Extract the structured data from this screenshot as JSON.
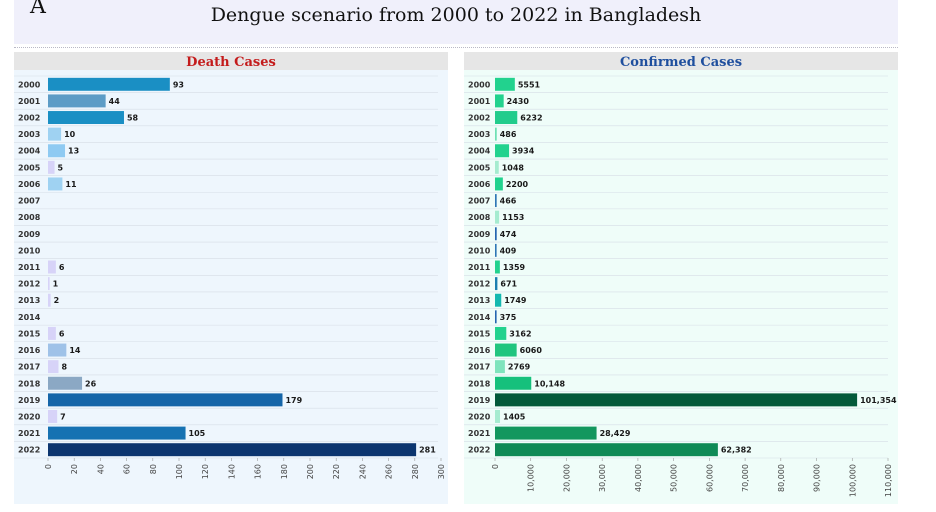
{
  "figure": {
    "panel_letter": "A",
    "title": "Dengue scenario  from 2000 to 2022 in Bangladesh"
  },
  "chart_data": [
    {
      "type": "bar",
      "orientation": "horizontal",
      "title": "Death Cases",
      "title_color": "#c41b1b",
      "categories": [
        "2000",
        "2001",
        "2002",
        "2003",
        "2004",
        "2005",
        "2006",
        "2007",
        "2008",
        "2009",
        "2010",
        "2011",
        "2012",
        "2013",
        "2014",
        "2015",
        "2016",
        "2017",
        "2018",
        "2019",
        "2020",
        "2021",
        "2022"
      ],
      "values": [
        93,
        44,
        58,
        10,
        13,
        5,
        11,
        0,
        0,
        0,
        0,
        6,
        1,
        2,
        0,
        6,
        14,
        8,
        26,
        179,
        7,
        105,
        281
      ],
      "value_labels": [
        "93",
        "44",
        "58",
        "10",
        "13",
        "5",
        "11",
        "",
        "",
        "",
        "",
        "6",
        "1",
        "2",
        "",
        "6",
        "14",
        "8",
        "26",
        "179",
        "7",
        "105",
        "281"
      ],
      "bar_colors": [
        "#1a8fc4",
        "#5d9cc6",
        "#1a8fc4",
        "#9fd2f2",
        "#8fcaf2",
        "#d7d3f8",
        "#9fd2f2",
        "#ffffff",
        "#ffffff",
        "#ffffff",
        "#ffffff",
        "#d7d3f8",
        "#d7d3f8",
        "#d7d3f8",
        "#ffffff",
        "#d7d3f8",
        "#9fc2e8",
        "#d7d3f8",
        "#8ba8c4",
        "#1565a8",
        "#d7d3f8",
        "#1672b2",
        "#0c356f"
      ],
      "xlim": [
        0,
        300
      ],
      "ticks": [
        0,
        20,
        40,
        60,
        80,
        100,
        120,
        140,
        160,
        180,
        200,
        220,
        240,
        260,
        280,
        300
      ],
      "tick_labels": [
        "0",
        "20",
        "40",
        "60",
        "80",
        "100",
        "120",
        "140",
        "160",
        "180",
        "200",
        "220",
        "240",
        "260",
        "280",
        "300"
      ],
      "background": "#eef6fd"
    },
    {
      "type": "bar",
      "orientation": "horizontal",
      "title": "Confirmed Cases",
      "title_color": "#1f4f9e",
      "categories": [
        "2000",
        "2001",
        "2002",
        "2003",
        "2004",
        "2005",
        "2006",
        "2007",
        "2008",
        "2009",
        "2010",
        "2011",
        "2012",
        "2013",
        "2014",
        "2015",
        "2016",
        "2017",
        "2018",
        "2019",
        "2020",
        "2021",
        "2022"
      ],
      "values": [
        5551,
        2430,
        6232,
        486,
        3934,
        1048,
        2200,
        466,
        1153,
        474,
        409,
        1359,
        671,
        1749,
        375,
        3162,
        6060,
        2769,
        10148,
        101354,
        1405,
        28429,
        62382
      ],
      "value_labels": [
        "5551",
        "2430",
        "6232",
        "486",
        "3934",
        "1048",
        "2200",
        "466",
        "1153",
        "474",
        "409",
        "1359",
        "671",
        "1749",
        "375",
        "3162",
        "6060",
        "2769",
        "10,148",
        "101,354",
        "1405",
        "28,429",
        "62,382"
      ],
      "bar_colors": [
        "#22d28e",
        "#22d28e",
        "#22cc8c",
        "#6ee0b4",
        "#22d28e",
        "#a6ecd0",
        "#22d28e",
        "#2e77b6",
        "#a6ecd0",
        "#2566b0",
        "#2e77b6",
        "#22d28e",
        "#1a7fb0",
        "#12b8b0",
        "#2566b0",
        "#22d28e",
        "#20c57f",
        "#7fe4bd",
        "#16c07c",
        "#03593a",
        "#a6ecd0",
        "#13975e",
        "#0f8a56"
      ],
      "xlim": [
        0,
        110000
      ],
      "ticks": [
        0,
        10000,
        20000,
        30000,
        40000,
        50000,
        60000,
        70000,
        80000,
        90000,
        100000,
        110000
      ],
      "tick_labels": [
        "0",
        "10,000",
        "20,000",
        "30,000",
        "40,000",
        "50,000",
        "60,000",
        "70,000",
        "80,000",
        "90,000",
        "100,000",
        "110,000"
      ],
      "background": "#effdf9"
    }
  ]
}
